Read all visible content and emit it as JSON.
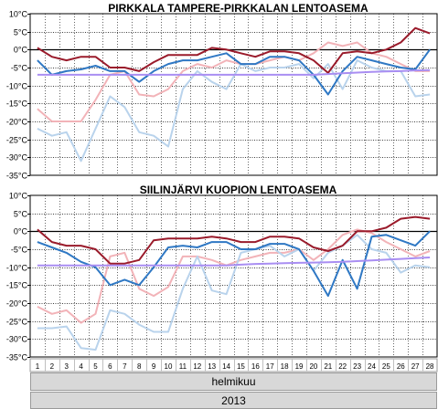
{
  "chart_data": [
    {
      "type": "line",
      "title": "PIRKKALA TAMPERE-PIRKKALAN LENTOASEMA",
      "ylim": [
        -35,
        10
      ],
      "yticks": [
        10,
        5,
        0,
        -5,
        -10,
        -15,
        -20,
        -25,
        -30,
        -35
      ],
      "ytick_labels": [
        "10°C",
        "5°C",
        "0°C",
        "-5°C",
        "-10°C",
        "-15°C",
        "-20°C",
        "-25°C",
        "-30°C",
        "-35°C"
      ],
      "grid": true,
      "x": [
        1,
        2,
        3,
        4,
        5,
        6,
        7,
        8,
        9,
        10,
        11,
        12,
        13,
        14,
        15,
        16,
        17,
        18,
        19,
        20,
        21,
        22,
        23,
        24,
        25,
        26,
        27,
        28
      ],
      "series": [
        {
          "color": "#f2b3b8",
          "values": [
            -16.5,
            -20,
            -20,
            -20,
            -14,
            -7,
            -6,
            -12.5,
            -13,
            -11,
            -6,
            -4,
            -5,
            -3,
            -4,
            -4,
            -3,
            -2,
            -3,
            -1,
            2,
            1,
            2,
            -1,
            -2,
            -4,
            -6,
            -6
          ]
        },
        {
          "color": "#b9d3ec",
          "values": [
            -22,
            -24,
            -23,
            -31,
            -22,
            -13,
            -16,
            -23,
            -24,
            -27,
            -11,
            -6,
            -9,
            -11,
            -4,
            -6,
            -5,
            -5,
            -4,
            -8,
            -4,
            -11,
            -3,
            -5,
            -6,
            -6,
            -13,
            -12.5
          ]
        },
        {
          "color": "#9a1b2b",
          "values": [
            0.5,
            -2,
            -3,
            -2,
            -2,
            -5,
            -5,
            -6,
            -3.5,
            -1.5,
            -1.5,
            -1.5,
            0.5,
            0,
            -1,
            -2,
            -0.5,
            -0.5,
            -1,
            -3,
            -6.5,
            -1,
            -0.5,
            -1,
            0,
            2,
            6,
            4.5
          ]
        },
        {
          "color": "#2f78c4",
          "values": [
            -3,
            -7,
            -6,
            -5.5,
            -4.5,
            -6,
            -6,
            -9,
            -6,
            -4,
            -3,
            -3,
            -2,
            -1,
            -4,
            -4,
            -2,
            -2,
            -3,
            -7,
            -12.5,
            -6,
            -2,
            -3,
            -4,
            -5,
            -5.5,
            0
          ]
        },
        {
          "color": "#a98ef2",
          "values": [
            -7,
            -7,
            -7,
            -7,
            -7,
            -7,
            -7,
            -7,
            -7,
            -7,
            -7,
            -7,
            -7,
            -7,
            -7,
            -7,
            -7,
            -7,
            -7,
            -7,
            -6.8,
            -6.6,
            -6.4,
            -6.2,
            -6.1,
            -6,
            -5.8,
            -5.7
          ]
        }
      ]
    },
    {
      "type": "line",
      "title": "SIILINJÄRVI KUOPION LENTOASEMA",
      "ylim": [
        -35,
        10
      ],
      "yticks": [
        10,
        5,
        0,
        -5,
        -10,
        -15,
        -20,
        -25,
        -30,
        -35
      ],
      "ytick_labels": [
        "10°C",
        "5°C",
        "0°C",
        "-5°C",
        "-10°C",
        "-15°C",
        "-20°C",
        "-25°C",
        "-30°C",
        "-35°C"
      ],
      "grid": true,
      "x": [
        1,
        2,
        3,
        4,
        5,
        6,
        7,
        8,
        9,
        10,
        11,
        12,
        13,
        14,
        15,
        16,
        17,
        18,
        19,
        20,
        21,
        22,
        23,
        24,
        25,
        26,
        27,
        28
      ],
      "series": [
        {
          "color": "#f2b3b8",
          "values": [
            -21,
            -23,
            -22,
            -25.5,
            -23,
            -7,
            -6,
            -16,
            -18,
            -15.5,
            -7,
            -7,
            -8,
            -9.5,
            -8,
            -7,
            -6,
            -6,
            -5,
            -8,
            -5,
            -1,
            0.5,
            -0.5,
            -3,
            -5,
            -7,
            -5.5
          ]
        },
        {
          "color": "#b9d3ec",
          "values": [
            -27,
            -27,
            -26.5,
            -32.5,
            -33,
            -22,
            -23,
            -26,
            -28,
            -28,
            -16,
            -7,
            -16.5,
            -17.5,
            -6,
            -5,
            -4,
            -7,
            -5,
            -11,
            -6,
            -4,
            -1,
            -5,
            -6,
            -11.5,
            -9.5,
            -10
          ]
        },
        {
          "color": "#9a1b2b",
          "values": [
            0.5,
            -3,
            -4,
            -4,
            -5,
            -9,
            -9,
            -8,
            -2.5,
            -2,
            -2,
            -2,
            -1.5,
            -2,
            -3,
            -3,
            -1.5,
            -1.5,
            -2,
            -4.5,
            -5.5,
            -4,
            0,
            0,
            1,
            3.5,
            4,
            3.5
          ]
        },
        {
          "color": "#2f78c4",
          "values": [
            -3,
            -4.5,
            -6,
            -8.5,
            -10,
            -15,
            -13.5,
            -15,
            -10,
            -4.5,
            -4,
            -4.5,
            -3,
            -3,
            -5,
            -5,
            -3.5,
            -3.5,
            -5,
            -11,
            -18,
            -8,
            -16,
            -1.5,
            -1,
            -2.5,
            -4,
            0
          ]
        },
        {
          "color": "#a98ef2",
          "values": [
            -9.5,
            -9.5,
            -9.5,
            -9.5,
            -9.5,
            -9.5,
            -9.5,
            -9.5,
            -9.5,
            -9.5,
            -9.5,
            -9.5,
            -9.5,
            -9.5,
            -9.3,
            -9.1,
            -9,
            -8.9,
            -8.8,
            -8.7,
            -8.6,
            -8.5,
            -8.3,
            -8.1,
            -7.9,
            -7.7,
            -7.5,
            -7.3
          ]
        }
      ]
    }
  ],
  "xaxis": {
    "tick_labels": [
      "1",
      "2",
      "3",
      "4",
      "5",
      "6",
      "7",
      "8",
      "9",
      "10",
      "11",
      "12",
      "13",
      "14",
      "15",
      "16",
      "17",
      "18",
      "19",
      "20",
      "21",
      "22",
      "23",
      "24",
      "25",
      "26",
      "27",
      "28"
    ],
    "month_label": "helmikuu",
    "year_label": "2013"
  }
}
